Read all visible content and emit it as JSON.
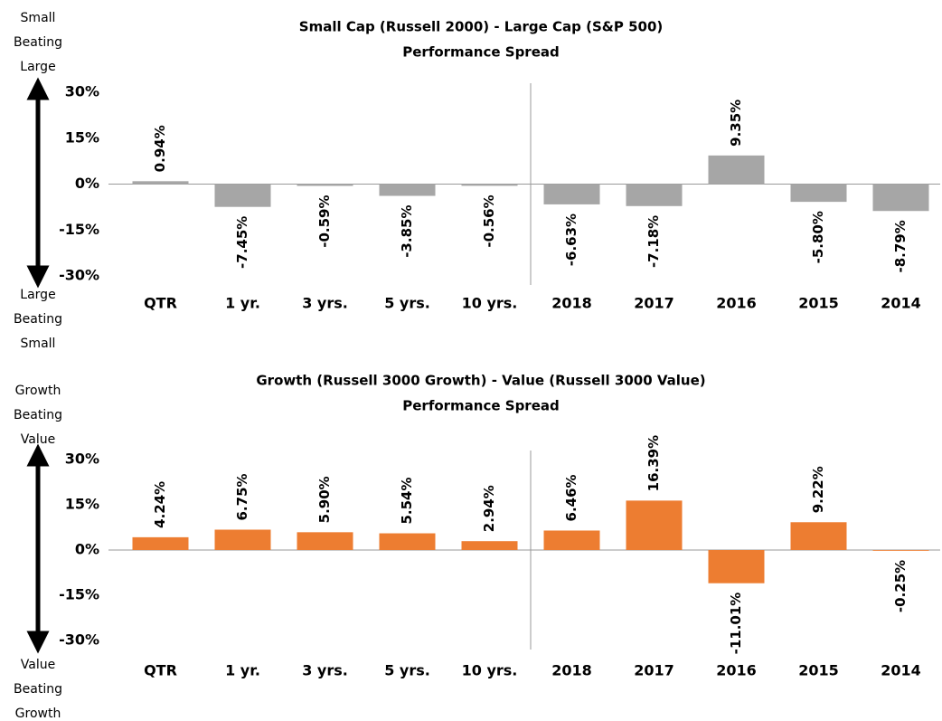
{
  "chart_data": [
    {
      "type": "bar",
      "title": "Small Cap (Russell 2000) - Large Cap (S&P 500)",
      "subtitle": "Performance Spread",
      "top_label": [
        "Small",
        "Beating",
        "Large"
      ],
      "bottom_label": [
        "Large",
        "Beating",
        "Small"
      ],
      "categories": [
        "QTR",
        "1 yr.",
        "3 yrs.",
        "5 yrs.",
        "10 yrs.",
        "2018",
        "2017",
        "2016",
        "2015",
        "2014"
      ],
      "values": [
        0.94,
        -7.45,
        -0.59,
        -3.85,
        -0.56,
        -6.63,
        -7.18,
        9.35,
        -5.8,
        -8.79
      ],
      "value_labels": [
        "0.94%",
        "-7.45%",
        "-0.59%",
        "-3.85%",
        "-0.56%",
        "-6.63%",
        "-7.18%",
        "9.35%",
        "-5.80%",
        "-8.79%"
      ],
      "color": "#a6a6a6",
      "ylim": [
        -30,
        30
      ],
      "yticks": [
        {
          "value": 30,
          "label": "30%"
        },
        {
          "value": 15,
          "label": "15%"
        },
        {
          "value": 0,
          "label": "0%"
        },
        {
          "value": -15,
          "label": "-15%"
        },
        {
          "value": -30,
          "label": "-30%"
        }
      ]
    },
    {
      "type": "bar",
      "title": "Growth (Russell 3000 Growth) - Value (Russell 3000 Value)",
      "subtitle": "Performance Spread",
      "top_label": [
        "Growth",
        "Beating",
        "Value"
      ],
      "bottom_label": [
        "Value",
        "Beating",
        "Growth"
      ],
      "categories": [
        "QTR",
        "1 yr.",
        "3 yrs.",
        "5 yrs.",
        "10 yrs.",
        "2018",
        "2017",
        "2016",
        "2015",
        "2014"
      ],
      "values": [
        4.24,
        6.75,
        5.9,
        5.54,
        2.94,
        6.46,
        16.39,
        -11.01,
        9.22,
        -0.25
      ],
      "value_labels": [
        "4.24%",
        "6.75%",
        "5.90%",
        "5.54%",
        "2.94%",
        "6.46%",
        "16.39%",
        "-11.01%",
        "9.22%",
        "-0.25%"
      ],
      "color": "#ed7d31",
      "ylim": [
        -30,
        30
      ],
      "yticks": [
        {
          "value": 30,
          "label": "30%"
        },
        {
          "value": 15,
          "label": "15%"
        },
        {
          "value": 0,
          "label": "0%"
        },
        {
          "value": -15,
          "label": "-15%"
        },
        {
          "value": -30,
          "label": "-30%"
        }
      ]
    }
  ]
}
